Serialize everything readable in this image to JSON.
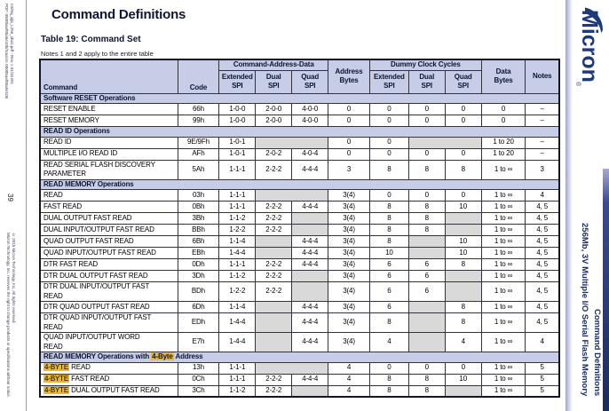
{
  "doc": {
    "title": "Command Definitions",
    "table_caption": "Table 19: Command Set",
    "table_note": "Notes 1 and 2 apply to the entire table",
    "page_number": "39"
  },
  "left_margin": {
    "micro_top_line1": "PDF: 09005aef85a5e105/Source: 09005aef85a5e105",
    "micro_top_line2": "mt25q_qljs_L256_xba1.pdf - Rev. c 01/15 EN",
    "copyright_line1": "Micron Technology, Inc. reserves the right to change products or specifications without notice.",
    "copyright_line2": "© 2015 Micron Technology, Inc. All rights reserved."
  },
  "right_sidebar": {
    "logo_text": "Micron",
    "logo_reg": "®",
    "product_line1": "256Mb, 3V Multiple I/O Serial Flash Memory",
    "product_line2": "Command Definitions"
  },
  "colors": {
    "header_bg": "#c7cde7",
    "gray_cell": "#d9d9d9",
    "highlight": "#e8b63f",
    "navy_text": "#1a2a5e",
    "side_bar": "#1d2a5a"
  },
  "table": {
    "col_widths_pct": [
      26.5,
      8,
      7,
      7,
      7,
      8,
      7.5,
      7,
      7,
      8.5,
      6.5
    ],
    "header": {
      "row1": [
        {
          "label": "Command",
          "rowspan": 2,
          "cls": "h-left"
        },
        {
          "label": "Code",
          "rowspan": 2,
          "cls": "h-bottom"
        },
        {
          "label": "Command-Address-Data",
          "colspan": 3
        },
        {
          "label": "Address\nBytes",
          "rowspan": 2
        },
        {
          "label": "Dummy Clock Cycles",
          "colspan": 3
        },
        {
          "label": "Data\nBytes",
          "rowspan": 2
        },
        {
          "label": "Notes",
          "rowspan": 2
        }
      ],
      "row2": [
        "Extended\nSPI",
        "Dual\nSPI",
        "Quad\nSPI",
        "Extended\nSPI",
        "Dual\nSPI",
        "Quad\nSPI"
      ]
    },
    "sections": [
      {
        "title_parts": [
          {
            "t": "Software RESET Operations"
          }
        ],
        "rows": [
          {
            "command": {
              "parts": [
                {
                  "t": "RESET ENABLE"
                }
              ]
            },
            "code": "66h",
            "cells": [
              {
                "v": "1-0-0"
              },
              {
                "v": "2-0-0"
              },
              {
                "v": "4-0-0"
              },
              {
                "v": "0"
              },
              {
                "v": "0"
              },
              {
                "v": "0"
              },
              {
                "v": "0"
              },
              {
                "v": "0"
              },
              {
                "v": "–"
              }
            ]
          },
          {
            "command": {
              "parts": [
                {
                  "t": "RESET MEMORY"
                }
              ]
            },
            "code": "99h",
            "cells": [
              {
                "v": "1-0-0"
              },
              {
                "v": "2-0-0"
              },
              {
                "v": "4-0-0"
              },
              {
                "v": "0"
              },
              {
                "v": "0"
              },
              {
                "v": "0"
              },
              {
                "v": "0"
              },
              {
                "v": "0"
              },
              {
                "v": "–"
              }
            ]
          }
        ]
      },
      {
        "title_parts": [
          {
            "t": "READ ID Operations"
          }
        ],
        "rows": [
          {
            "command": {
              "parts": [
                {
                  "t": "READ ID"
                }
              ]
            },
            "code": "9E/9Fh",
            "cells": [
              {
                "v": "1-0-1"
              },
              {
                "g": 2
              },
              {
                "v": "0"
              },
              {
                "v": "0"
              },
              {
                "g": 2
              },
              {
                "v": "1 to 20"
              },
              {
                "v": "–"
              }
            ]
          },
          {
            "command": {
              "parts": [
                {
                  "t": "MULTIPLE I/O READ ID"
                }
              ]
            },
            "code": "AFh",
            "cells": [
              {
                "v": "1-0-1"
              },
              {
                "v": "2-0-2"
              },
              {
                "v": "4-0-4"
              },
              {
                "v": "0"
              },
              {
                "v": "0"
              },
              {
                "v": "0"
              },
              {
                "v": "0"
              },
              {
                "v": "1 to 20"
              },
              {
                "v": "–"
              }
            ]
          },
          {
            "command": {
              "parts": [
                {
                  "t": "READ SERIAL FLASH DISCOVERY"
                }
              ],
              "line2": "PARAMETER"
            },
            "code": "5Ah",
            "cells": [
              {
                "v": "1-1-1"
              },
              {
                "v": "2-2-2"
              },
              {
                "v": "4-4-4"
              },
              {
                "v": "3"
              },
              {
                "v": "8"
              },
              {
                "v": "8"
              },
              {
                "v": "8"
              },
              {
                "v": "1 to ∞"
              },
              {
                "v": "3"
              }
            ]
          }
        ]
      },
      {
        "title_parts": [
          {
            "t": "READ MEMORY Operations"
          }
        ],
        "rows": [
          {
            "command": {
              "parts": [
                {
                  "t": "READ"
                }
              ]
            },
            "code": "03h",
            "cells": [
              {
                "v": "1-1-1"
              },
              {
                "g": 2
              },
              {
                "v": "3(4)"
              },
              {
                "v": "0"
              },
              {
                "v": "0"
              },
              {
                "v": "0"
              },
              {
                "v": "1 to ∞"
              },
              {
                "v": "4"
              }
            ]
          },
          {
            "command": {
              "parts": [
                {
                  "t": "FAST READ"
                }
              ]
            },
            "code": "0Bh",
            "cells": [
              {
                "v": "1-1-1"
              },
              {
                "v": "2-2-2"
              },
              {
                "v": "4-4-4"
              },
              {
                "v": "3(4)"
              },
              {
                "v": "8"
              },
              {
                "v": "8"
              },
              {
                "v": "10"
              },
              {
                "v": "1 to ∞"
              },
              {
                "v": "4, 5"
              }
            ]
          },
          {
            "command": {
              "parts": [
                {
                  "t": "DUAL OUTPUT FAST READ"
                }
              ]
            },
            "code": "3Bh",
            "cells": [
              {
                "v": "1-1-2"
              },
              {
                "v": "2-2-2"
              },
              {
                "g": 1
              },
              {
                "v": "3(4)"
              },
              {
                "v": "8"
              },
              {
                "v": "8"
              },
              {
                "g": 1
              },
              {
                "v": "1 to ∞"
              },
              {
                "v": "4, 5"
              }
            ]
          },
          {
            "command": {
              "parts": [
                {
                  "t": "DUAL INPUT/OUTPUT FAST READ"
                }
              ]
            },
            "code": "BBh",
            "cells": [
              {
                "v": "1-2-2"
              },
              {
                "v": "2-2-2"
              },
              {
                "g": 1
              },
              {
                "v": "3(4)"
              },
              {
                "v": "8"
              },
              {
                "v": "8"
              },
              {
                "g": 1
              },
              {
                "v": "1 to ∞"
              },
              {
                "v": "4, 5"
              }
            ]
          },
          {
            "command": {
              "parts": [
                {
                  "t": "QUAD OUTPUT FAST READ"
                }
              ]
            },
            "code": "6Bh",
            "cells": [
              {
                "v": "1-1-4"
              },
              {
                "g": 1
              },
              {
                "v": "4-4-4"
              },
              {
                "v": "3(4)"
              },
              {
                "v": "8"
              },
              {
                "g": 1
              },
              {
                "v": "10"
              },
              {
                "v": "1 to ∞"
              },
              {
                "v": "4, 5"
              }
            ]
          },
          {
            "command": {
              "parts": [
                {
                  "t": "QUAD INPUT/OUTPUT FAST READ"
                }
              ]
            },
            "code": "EBh",
            "cells": [
              {
                "v": "1-4-4"
              },
              {
                "g": 1
              },
              {
                "v": "4-4-4"
              },
              {
                "v": "3(4)"
              },
              {
                "v": "10"
              },
              {
                "g": 1
              },
              {
                "v": "10"
              },
              {
                "v": "1 to ∞"
              },
              {
                "v": "4, 5"
              }
            ]
          },
          {
            "command": {
              "parts": [
                {
                  "t": "DTR FAST READ"
                }
              ]
            },
            "code": "0Dh",
            "cells": [
              {
                "v": "1-1-1"
              },
              {
                "v": "2-2-2"
              },
              {
                "v": "4-4-4"
              },
              {
                "v": "3(4)"
              },
              {
                "v": "6"
              },
              {
                "v": "6"
              },
              {
                "v": "8"
              },
              {
                "v": "1 to ∞"
              },
              {
                "v": "4, 5"
              }
            ]
          },
          {
            "command": {
              "parts": [
                {
                  "t": "DTR DUAL OUTPUT FAST READ"
                }
              ]
            },
            "code": "3Dh",
            "cells": [
              {
                "v": "1-1-2"
              },
              {
                "v": "2-2-2"
              },
              {
                "g": 1
              },
              {
                "v": "3(4)"
              },
              {
                "v": "6"
              },
              {
                "v": "6"
              },
              {
                "g": 1
              },
              {
                "v": "1 to ∞"
              },
              {
                "v": "4, 5"
              }
            ]
          },
          {
            "command": {
              "parts": [
                {
                  "t": "DTR DUAL INPUT/OUTPUT FAST"
                }
              ],
              "line2": "READ"
            },
            "code": "BDh",
            "cells": [
              {
                "v": "1-2-2"
              },
              {
                "v": "2-2-2"
              },
              {
                "g": 1
              },
              {
                "v": "3(4)"
              },
              {
                "v": "6"
              },
              {
                "v": "6"
              },
              {
                "g": 1
              },
              {
                "v": "1 to ∞"
              },
              {
                "v": "4, 5"
              }
            ]
          },
          {
            "command": {
              "parts": [
                {
                  "t": "DTR QUAD OUTPUT FAST READ"
                }
              ]
            },
            "code": "6Dh",
            "cells": [
              {
                "v": "1-1-4"
              },
              {
                "g": 1
              },
              {
                "v": "4-4-4"
              },
              {
                "v": "3(4)"
              },
              {
                "v": "6"
              },
              {
                "g": 1
              },
              {
                "v": "8"
              },
              {
                "v": "1 to ∞"
              },
              {
                "v": "4, 5"
              }
            ]
          },
          {
            "command": {
              "parts": [
                {
                  "t": "DTR QUAD INPUT/OUTPUT FAST"
                }
              ],
              "line2": "READ"
            },
            "code": "EDh",
            "cells": [
              {
                "v": "1-4-4"
              },
              {
                "g": 1
              },
              {
                "v": "4-4-4"
              },
              {
                "v": "3(4)"
              },
              {
                "v": "8"
              },
              {
                "g": 1
              },
              {
                "v": "8"
              },
              {
                "v": "1 to ∞"
              },
              {
                "v": "4, 5"
              }
            ]
          },
          {
            "command": {
              "parts": [
                {
                  "t": "QUAD INPUT/OUTPUT WORD"
                }
              ],
              "line2": "READ"
            },
            "code": "E7h",
            "cells": [
              {
                "v": "1-4-4"
              },
              {
                "g": 1
              },
              {
                "v": "4-4-4"
              },
              {
                "v": "3(4)"
              },
              {
                "v": "4"
              },
              {
                "g": 1
              },
              {
                "v": "4"
              },
              {
                "v": "1 to ∞"
              },
              {
                "v": "4"
              }
            ]
          }
        ]
      },
      {
        "title_parts": [
          {
            "t": "READ MEMORY Operations with "
          },
          {
            "t": "4-Byte",
            "hl": true
          },
          {
            "t": " Address"
          }
        ],
        "rows": [
          {
            "command": {
              "parts": [
                {
                  "t": "4-BYTE",
                  "hl": true
                },
                {
                  "t": " READ"
                }
              ]
            },
            "code": "13h",
            "cells": [
              {
                "v": "1-1-1"
              },
              {
                "g": 2
              },
              {
                "v": "4"
              },
              {
                "v": "0"
              },
              {
                "v": "0"
              },
              {
                "v": "0"
              },
              {
                "v": "1 to ∞"
              },
              {
                "v": "5"
              }
            ]
          },
          {
            "command": {
              "parts": [
                {
                  "t": "4-BYTE",
                  "hl": true
                },
                {
                  "t": " FAST READ"
                }
              ]
            },
            "code": "0Ch",
            "cells": [
              {
                "v": "1-1-1"
              },
              {
                "v": "2-2-2"
              },
              {
                "v": "4-4-4"
              },
              {
                "v": "4"
              },
              {
                "v": "8"
              },
              {
                "v": "8"
              },
              {
                "v": "10"
              },
              {
                "v": "1 to ∞"
              },
              {
                "v": "5"
              }
            ]
          },
          {
            "command": {
              "parts": [
                {
                  "t": "4-BYTE",
                  "hl": true
                },
                {
                  "t": " DUAL OUTPUT FAST READ"
                }
              ]
            },
            "code": "3Ch",
            "cells": [
              {
                "v": "1-1-2"
              },
              {
                "v": "2-2-2"
              },
              {
                "g": 1
              },
              {
                "v": "4"
              },
              {
                "v": "8"
              },
              {
                "v": "8"
              },
              {
                "g": 1
              },
              {
                "v": "1 to ∞"
              },
              {
                "v": "5"
              }
            ]
          }
        ]
      }
    ]
  }
}
